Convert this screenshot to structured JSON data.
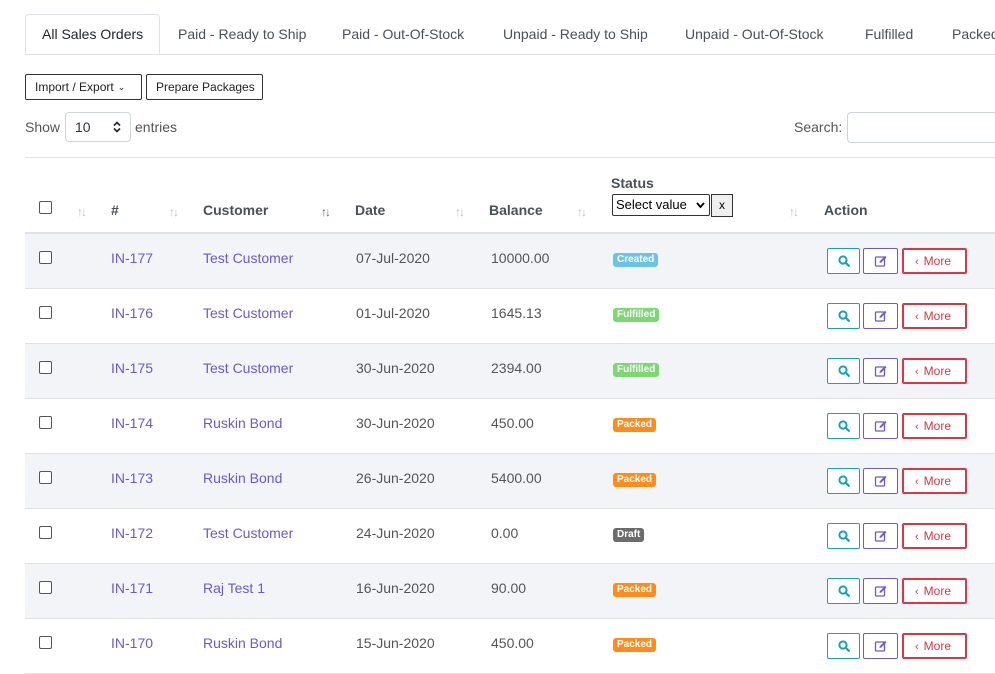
{
  "tabs": [
    {
      "label": "All Sales Orders",
      "active": true
    },
    {
      "label": "Paid - Ready to Ship"
    },
    {
      "label": "Paid - Out-Of-Stock"
    },
    {
      "label": "Unpaid - Ready to Ship"
    },
    {
      "label": "Unpaid - Out-Of-Stock"
    },
    {
      "label": "Fulfilled"
    },
    {
      "label": "Packed"
    }
  ],
  "toolbar": {
    "import_export_label": "Import / Export",
    "prepare_packages_label": "Prepare Packages"
  },
  "length": {
    "show_label": "Show",
    "value": "10",
    "entries_label": "entries"
  },
  "search": {
    "label": "Search:",
    "value": ""
  },
  "table": {
    "headers": {
      "number": "#",
      "customer": "Customer",
      "date": "Date",
      "balance": "Balance",
      "status": "Status",
      "action": "Action"
    },
    "status_filter": {
      "selected": "Select value",
      "clear_label": "x"
    },
    "action_labels": {
      "more": "More"
    },
    "rows": [
      {
        "id": "IN-177",
        "customer": "Test Customer",
        "date": "07-Jul-2020",
        "balance": "10000.00",
        "status": "Created"
      },
      {
        "id": "IN-176",
        "customer": "Test Customer",
        "date": "01-Jul-2020",
        "balance": "1645.13",
        "status": "Fulfilled"
      },
      {
        "id": "IN-175",
        "customer": "Test Customer",
        "date": "30-Jun-2020",
        "balance": "2394.00",
        "status": "Fulfilled"
      },
      {
        "id": "IN-174",
        "customer": "Ruskin Bond",
        "date": "30-Jun-2020",
        "balance": "450.00",
        "status": "Packed"
      },
      {
        "id": "IN-173",
        "customer": "Ruskin Bond",
        "date": "26-Jun-2020",
        "balance": "5400.00",
        "status": "Packed"
      },
      {
        "id": "IN-172",
        "customer": "Test Customer",
        "date": "24-Jun-2020",
        "balance": "0.00",
        "status": "Draft"
      },
      {
        "id": "IN-171",
        "customer": "Raj Test 1",
        "date": "16-Jun-2020",
        "balance": "90.00",
        "status": "Packed"
      },
      {
        "id": "IN-170",
        "customer": "Ruskin Bond",
        "date": "15-Jun-2020",
        "balance": "450.00",
        "status": "Packed"
      }
    ]
  },
  "status_colors": {
    "Created": "#6cc4e4",
    "Fulfilled": "#7bd873",
    "Packed": "#ff8c1a",
    "Draft": "#6c6c6c"
  },
  "accent_colors": {
    "link": "#6a5acd",
    "view": "#17a2b8",
    "edit": "#6a5acd",
    "more": "#dc3545"
  },
  "icons": {
    "view": "search-icon",
    "edit": "edit-icon",
    "more": "chevron-left-icon",
    "sort": "sort-icon"
  }
}
